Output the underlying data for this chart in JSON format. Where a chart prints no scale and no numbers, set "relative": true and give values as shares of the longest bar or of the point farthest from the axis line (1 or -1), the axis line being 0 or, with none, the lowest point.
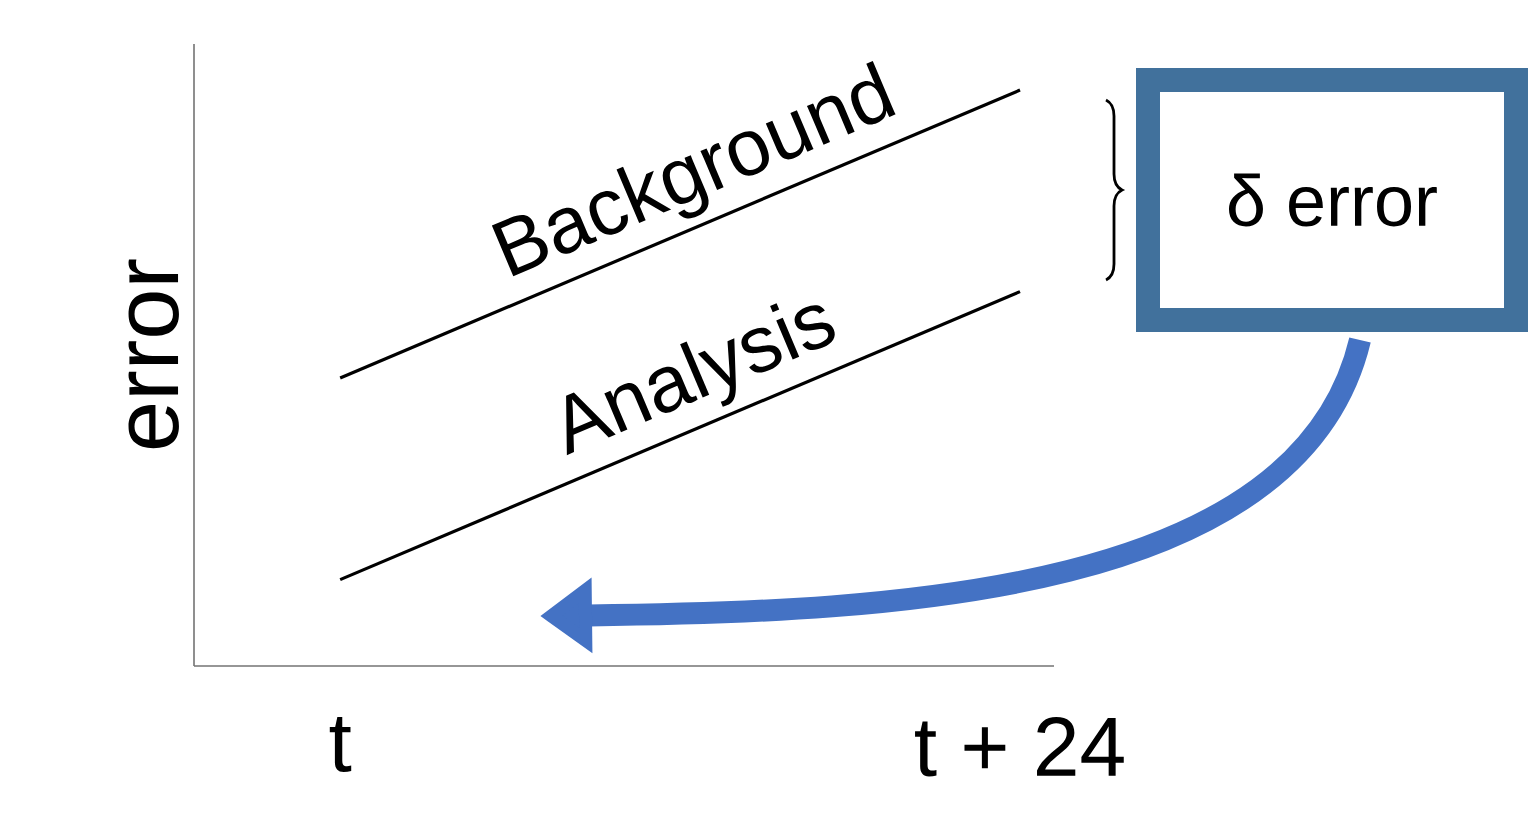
{
  "chart_data": {
    "type": "line",
    "relative": true,
    "ylabel": "error",
    "categories": [
      "t",
      "t + 24"
    ],
    "series": [
      {
        "name": "Background",
        "color": "#000000",
        "values": [
          0.5,
          1
        ]
      },
      {
        "name": "Analysis",
        "color": "#000000",
        "values": [
          0.15,
          0.65
        ]
      }
    ],
    "annotations": [
      "δ error"
    ],
    "tick_labels": "x",
    "legend": false,
    "grid": false,
    "marker": "none",
    "line_style": "solid"
  }
}
